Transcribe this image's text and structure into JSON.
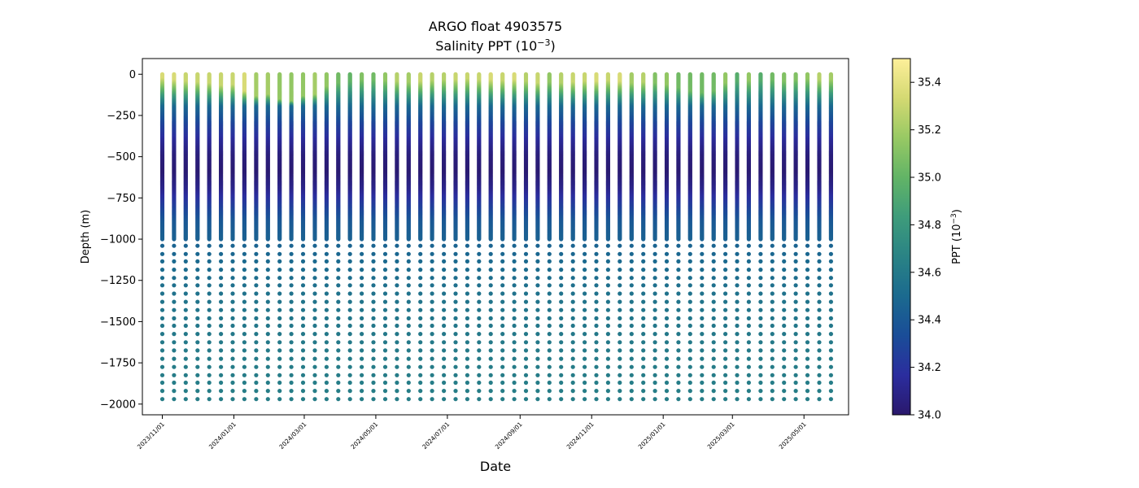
{
  "chart_data": {
    "type": "scatter",
    "title": "ARGO float 4903575",
    "subtitle_prefix": "Salinity PPT (10",
    "subtitle_exp": "−3",
    "subtitle_suffix": ")",
    "xlabel": "Date",
    "ylabel": "Depth (m)",
    "ylim": [
      -2065,
      95
    ],
    "xlim": [
      "2023-10-15",
      "2025-06-08"
    ],
    "grid": false,
    "y_ticks": [
      0,
      -250,
      -500,
      -750,
      -1000,
      -1250,
      -1500,
      -1750,
      -2000
    ],
    "y_tick_labels": [
      "0",
      "−250",
      "−500",
      "−750",
      "−1000",
      "−1250",
      "−1500",
      "−1750",
      "−2000"
    ],
    "x_ticks": [
      "2023-11-01",
      "2024-01-01",
      "2024-03-01",
      "2024-05-01",
      "2024-07-01",
      "2024-09-01",
      "2024-11-01",
      "2025-01-01",
      "2025-03-01",
      "2025-05-01"
    ],
    "x_tick_labels": [
      "2023/11/01",
      "2024/01/01",
      "2024/03/01",
      "2024/05/01",
      "2024/07/01",
      "2024/09/01",
      "2024/11/01",
      "2025/01/01",
      "2025/03/01",
      "2025/05/01"
    ],
    "profile_interval_days": 10,
    "profile_dates": [
      "2023-11-01",
      "2023-11-11",
      "2023-11-21",
      "2023-12-01",
      "2023-12-11",
      "2023-12-21",
      "2023-12-31",
      "2024-01-10",
      "2024-01-20",
      "2024-01-30",
      "2024-02-09",
      "2024-02-19",
      "2024-02-29",
      "2024-03-10",
      "2024-03-20",
      "2024-03-30",
      "2024-04-09",
      "2024-04-19",
      "2024-04-29",
      "2024-05-09",
      "2024-05-19",
      "2024-05-29",
      "2024-06-08",
      "2024-06-18",
      "2024-06-28",
      "2024-07-08",
      "2024-07-18",
      "2024-07-28",
      "2024-08-07",
      "2024-08-17",
      "2024-08-27",
      "2024-09-06",
      "2024-09-16",
      "2024-09-26",
      "2024-10-06",
      "2024-10-16",
      "2024-10-26",
      "2024-11-05",
      "2024-11-15",
      "2024-11-25",
      "2024-12-05",
      "2024-12-15",
      "2024-12-25",
      "2025-01-04",
      "2025-01-14",
      "2025-01-24",
      "2025-02-03",
      "2025-02-13",
      "2025-02-23",
      "2025-03-05",
      "2025-03-15",
      "2025-03-25",
      "2025-04-04",
      "2025-04-14",
      "2025-04-24",
      "2025-05-04",
      "2025-05-14",
      "2025-05-24"
    ],
    "surface_salinity": [
      35.35,
      35.35,
      35.3,
      35.3,
      35.3,
      35.3,
      35.3,
      35.35,
      35.2,
      35.2,
      35.15,
      35.15,
      35.15,
      35.2,
      35.15,
      35.05,
      35.0,
      35.1,
      35.05,
      35.15,
      35.25,
      35.2,
      35.3,
      35.25,
      35.25,
      35.3,
      35.3,
      35.3,
      35.35,
      35.3,
      35.35,
      35.25,
      35.3,
      35.15,
      35.25,
      35.3,
      35.3,
      35.35,
      35.3,
      35.35,
      35.2,
      35.25,
      35.1,
      35.15,
      35.05,
      35.05,
      35.05,
      35.05,
      35.15,
      34.95,
      35.15,
      34.95,
      35.05,
      35.1,
      35.1,
      35.15,
      35.25,
      35.2
    ],
    "mixed_layer_depth_m": [
      30,
      40,
      50,
      55,
      60,
      75,
      70,
      110,
      140,
      130,
      160,
      170,
      140,
      130,
      80,
      60,
      50,
      40,
      40,
      45,
      50,
      55,
      50,
      45,
      40,
      40,
      35,
      40,
      40,
      45,
      40,
      50,
      60,
      55,
      60,
      55,
      50,
      50,
      45,
      50,
      60,
      55,
      60,
      70,
      90,
      110,
      120,
      110,
      60,
      50,
      45,
      45,
      40,
      50,
      40,
      35,
      40,
      40
    ],
    "salinity_profile_depth_m": [
      0,
      100,
      200,
      300,
      400,
      500,
      600,
      700,
      800,
      900,
      1000,
      1200,
      1400,
      1600,
      1800,
      2000
    ],
    "salinity_profile_ppt": [
      35.2,
      34.75,
      34.5,
      34.3,
      34.15,
      34.05,
      34.02,
      34.1,
      34.25,
      34.4,
      34.45,
      34.52,
      34.57,
      34.6,
      34.62,
      34.63
    ],
    "deep_levels_m": [
      -1040,
      -1090,
      -1135,
      -1185,
      -1235,
      -1280,
      -1330,
      -1380,
      -1430,
      -1480,
      -1525,
      -1575,
      -1625,
      -1675,
      -1725,
      -1775,
      -1825,
      -1870,
      -1920,
      -1970
    ],
    "colorbar": {
      "label_prefix": "PPT (10",
      "label_exp": "−3",
      "label_suffix": ")",
      "min": 34.0,
      "max": 35.5,
      "ticks": [
        34.0,
        34.2,
        34.4,
        34.6,
        34.8,
        35.0,
        35.2,
        35.4
      ],
      "tick_labels": [
        "34.0",
        "34.2",
        "34.4",
        "34.6",
        "34.8",
        "35.0",
        "35.2",
        "35.4"
      ],
      "colormap": "haline",
      "colors": [
        "#2a186c",
        "#2b2d9e",
        "#1a4d98",
        "#1b6a8f",
        "#2a8385",
        "#3e9c7b",
        "#62b466",
        "#98c964",
        "#d4d972",
        "#fdef9a"
      ]
    }
  }
}
